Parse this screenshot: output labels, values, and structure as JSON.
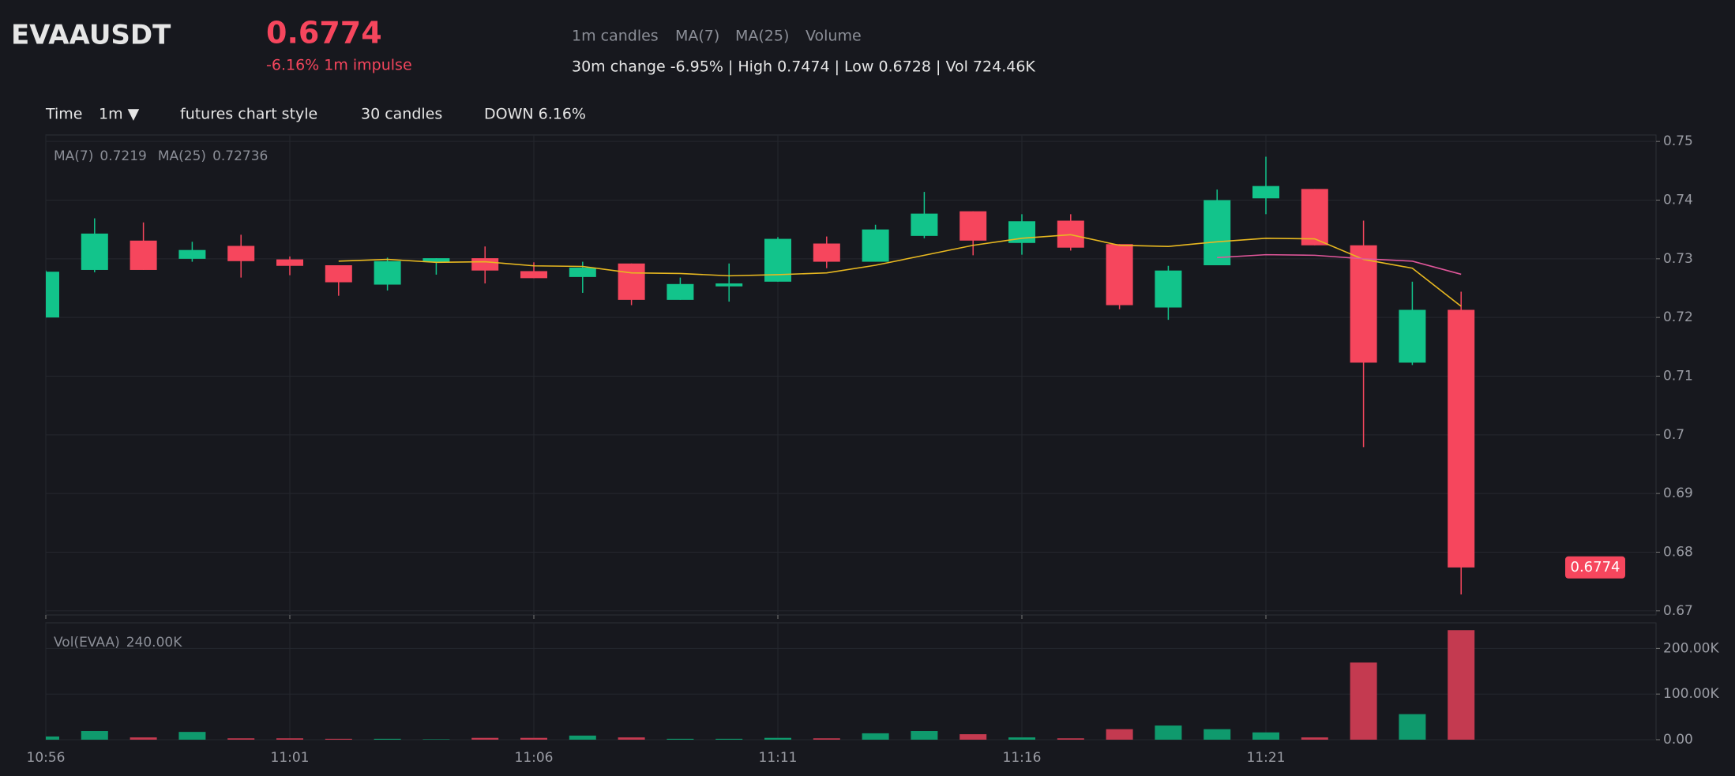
{
  "header": {
    "symbol": "EVAAUSDT",
    "price": "0.6774",
    "impulse": "-6.16% 1m impulse",
    "indicators": [
      "1m candles",
      "MA(7)",
      "MA(25)",
      "Volume"
    ],
    "summary": "30m change -6.95% | High 0.7474 | Low 0.6728 | Vol 724.46K"
  },
  "toolbar": {
    "time_label": "Time",
    "interval": "1m ▼",
    "style": "futures chart style",
    "count": "30 candles",
    "direction": "DOWN 6.16%"
  },
  "chart_data": {
    "type": "candlestick",
    "x": [
      "10:56",
      null,
      null,
      null,
      null,
      "11:01",
      null,
      null,
      null,
      null,
      "11:06",
      null,
      null,
      null,
      null,
      "11:11",
      null,
      null,
      null,
      null,
      "11:16",
      null,
      null,
      null,
      null,
      "11:21",
      null,
      null,
      null,
      null
    ],
    "open": [
      0.72,
      0.7281,
      0.7331,
      0.73,
      0.7322,
      0.7299,
      0.7289,
      0.7256,
      0.7295,
      0.7301,
      0.7279,
      0.7269,
      0.7292,
      0.723,
      0.7253,
      0.7261,
      0.7326,
      0.7295,
      0.7339,
      0.7381,
      0.7327,
      0.7365,
      0.7325,
      0.7217,
      0.7289,
      0.7403,
      0.7419,
      0.7323,
      0.7123,
      0.7213
    ],
    "high": [
      0.728,
      0.7369,
      0.7362,
      0.7329,
      0.7341,
      0.7304,
      0.7289,
      0.7302,
      0.7301,
      0.7321,
      0.7294,
      0.7295,
      0.7292,
      0.7268,
      0.7292,
      0.7337,
      0.7338,
      0.7358,
      0.7414,
      0.7381,
      0.7376,
      0.7376,
      0.7325,
      0.7288,
      0.7418,
      0.7474,
      0.7419,
      0.7365,
      0.7261,
      0.7244
    ],
    "low": [
      0.72,
      0.7277,
      0.7281,
      0.7295,
      0.7268,
      0.7272,
      0.7237,
      0.7246,
      0.7273,
      0.7258,
      0.7267,
      0.7242,
      0.7221,
      0.723,
      0.7227,
      0.7261,
      0.7284,
      0.7295,
      0.7335,
      0.7306,
      0.7307,
      0.7314,
      0.7214,
      0.7196,
      0.7289,
      0.7376,
      0.7323,
      0.6979,
      0.7119,
      0.6728
    ],
    "close": [
      0.7278,
      0.7343,
      0.7281,
      0.7315,
      0.7296,
      0.7288,
      0.726,
      0.7296,
      0.7301,
      0.728,
      0.7267,
      0.7285,
      0.723,
      0.7257,
      0.7258,
      0.7334,
      0.7295,
      0.735,
      0.7377,
      0.7331,
      0.7364,
      0.7319,
      0.7221,
      0.728,
      0.74,
      0.7424,
      0.7323,
      0.7123,
      0.7213,
      0.6774
    ],
    "up_color": "#12c48b",
    "down_color": "#f6465d",
    "ylim": [
      0.6693,
      0.7511
    ],
    "yticks": [
      0.67,
      0.68,
      0.69,
      0.7,
      0.71,
      0.72,
      0.73,
      0.74,
      0.75
    ],
    "grid": true,
    "series": [
      {
        "name": "MA(7)",
        "value_label": "0.7219",
        "color": "#e8b820",
        "values": [
          null,
          null,
          null,
          null,
          null,
          null,
          0.7296,
          0.7299,
          0.7294,
          0.7295,
          0.7288,
          0.7287,
          0.7276,
          0.7275,
          0.7271,
          0.7273,
          0.7276,
          0.7289,
          0.7306,
          0.7323,
          0.7335,
          0.7341,
          0.7323,
          0.7321,
          0.7329,
          0.7335,
          0.7334,
          0.7299,
          0.7284,
          0.7219
        ]
      },
      {
        "name": "MA(25)",
        "value_label": "0.72736",
        "color": "#e0569a",
        "values": [
          null,
          null,
          null,
          null,
          null,
          null,
          null,
          null,
          null,
          null,
          null,
          null,
          null,
          null,
          null,
          null,
          null,
          null,
          null,
          null,
          null,
          null,
          null,
          null,
          0.7302,
          0.7307,
          0.7306,
          0.73,
          0.7296,
          0.72736
        ]
      }
    ],
    "last_price": 0.6774,
    "volume": {
      "name": "Vol(EVAA)",
      "value_label": "240.00K",
      "values": [
        7000,
        19000,
        5000,
        17000,
        3000,
        3000,
        2000,
        2000,
        1000,
        4000,
        4000,
        9000,
        5000,
        2000,
        2000,
        4000,
        3000,
        14000,
        19000,
        12000,
        5000,
        3000,
        23000,
        31000,
        23000,
        16000,
        5000,
        169000,
        56000,
        240000
      ],
      "up_color": "#0f9a6d",
      "down_color": "#c43a50",
      "ylim": [
        0,
        256000
      ],
      "yticks": [
        {
          "value": 0,
          "label": "0.00"
        },
        {
          "value": 100000,
          "label": "100.00K"
        },
        {
          "value": 200000,
          "label": "200.00K"
        }
      ]
    }
  }
}
